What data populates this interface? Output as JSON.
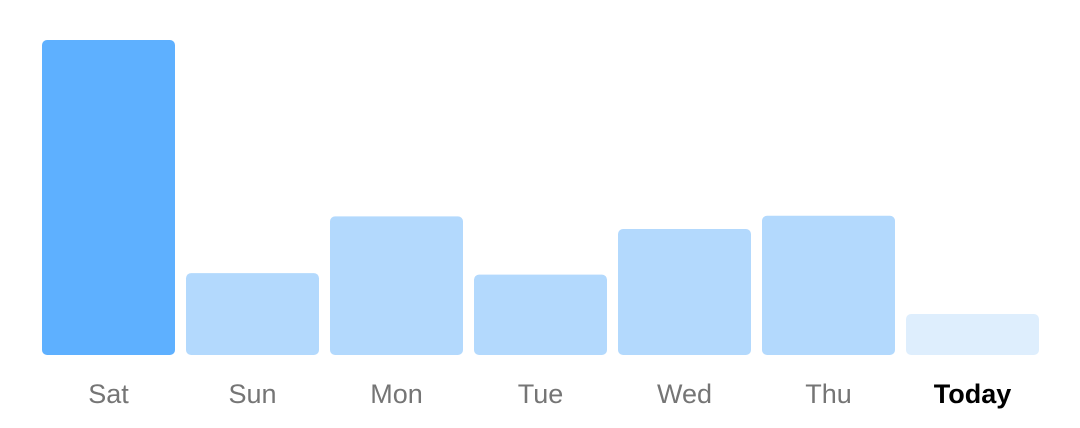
{
  "chart_data": {
    "type": "bar",
    "categories": [
      "Sat",
      "Sun",
      "Mon",
      "Tue",
      "Wed",
      "Thu",
      "Today"
    ],
    "values": [
      100,
      26,
      44,
      25.5,
      40,
      44.2,
      13
    ],
    "ylim": [
      0,
      100
    ],
    "grid": false,
    "legend": "none",
    "highlight_category": "Today",
    "colors": {
      "peak": "#5eb0ff",
      "normal": "#b3d9fd",
      "current": "#deeefd",
      "label": "#757575",
      "label_current": "#000000"
    }
  }
}
